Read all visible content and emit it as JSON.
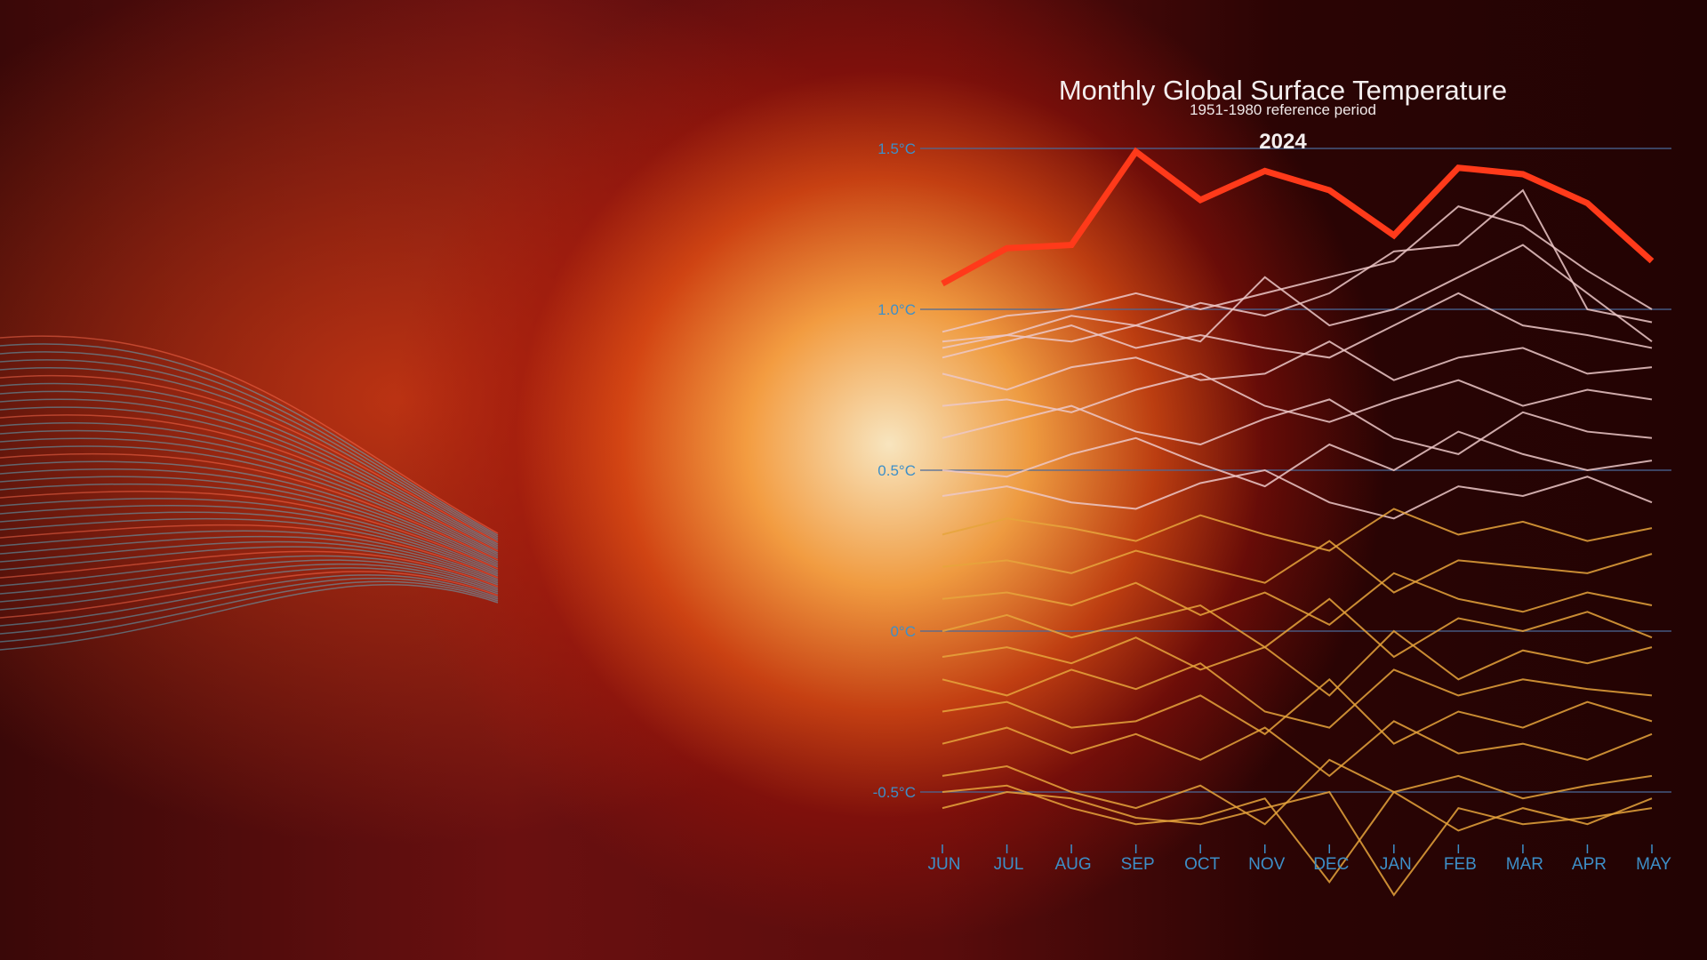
{
  "chart_data": {
    "type": "line",
    "title": "Monthly Global Surface Temperature",
    "subtitle": "1951-1980 reference period",
    "highlight_label": "2024",
    "categories": [
      "JUN",
      "JUL",
      "AUG",
      "SEP",
      "OCT",
      "NOV",
      "DEC",
      "JAN",
      "FEB",
      "MAR",
      "APR",
      "MAY"
    ],
    "yticks": [
      {
        "value": 1.5,
        "label": "1.5°C"
      },
      {
        "value": 1.0,
        "label": "1.0°C"
      },
      {
        "value": 0.5,
        "label": "0.5°C"
      },
      {
        "value": 0.0,
        "label": "0°C"
      },
      {
        "value": -0.5,
        "label": "-0.5°C"
      }
    ],
    "ylim": [
      -0.9,
      1.55
    ],
    "grid": true,
    "highlight_series": {
      "values": [
        1.08,
        1.19,
        1.2,
        1.49,
        1.34,
        1.43,
        1.37,
        1.23,
        1.44,
        1.42,
        1.33,
        1.15
      ],
      "color": "#ff3a1a"
    },
    "background_series": [
      [
        0.93,
        0.98,
        1.0,
        1.05,
        1.0,
        1.05,
        1.1,
        1.15,
        1.32,
        1.26,
        1.12,
        1.0
      ],
      [
        0.9,
        0.92,
        0.98,
        0.95,
        1.02,
        0.98,
        1.05,
        1.18,
        1.2,
        1.37,
        1.0,
        0.96
      ],
      [
        0.88,
        0.92,
        0.9,
        0.95,
        0.9,
        1.1,
        0.95,
        1.0,
        1.1,
        1.2,
        1.05,
        0.9
      ],
      [
        0.85,
        0.9,
        0.95,
        0.88,
        0.92,
        0.88,
        0.85,
        0.95,
        1.05,
        0.95,
        0.92,
        0.88
      ],
      [
        0.8,
        0.75,
        0.82,
        0.85,
        0.78,
        0.8,
        0.9,
        0.78,
        0.85,
        0.88,
        0.8,
        0.82
      ],
      [
        0.7,
        0.72,
        0.68,
        0.75,
        0.8,
        0.7,
        0.65,
        0.72,
        0.78,
        0.7,
        0.75,
        0.72
      ],
      [
        0.6,
        0.65,
        0.7,
        0.62,
        0.58,
        0.66,
        0.72,
        0.6,
        0.55,
        0.68,
        0.62,
        0.6
      ],
      [
        0.5,
        0.48,
        0.55,
        0.6,
        0.52,
        0.45,
        0.58,
        0.5,
        0.62,
        0.55,
        0.5,
        0.53
      ],
      [
        0.42,
        0.45,
        0.4,
        0.38,
        0.46,
        0.5,
        0.4,
        0.35,
        0.45,
        0.42,
        0.48,
        0.4
      ],
      [
        0.3,
        0.35,
        0.32,
        0.28,
        0.36,
        0.3,
        0.25,
        0.38,
        0.3,
        0.34,
        0.28,
        0.32
      ],
      [
        0.2,
        0.22,
        0.18,
        0.25,
        0.2,
        0.15,
        0.28,
        0.12,
        0.22,
        0.2,
        0.18,
        0.24
      ],
      [
        0.1,
        0.12,
        0.08,
        0.15,
        0.05,
        0.12,
        0.02,
        0.18,
        0.1,
        0.06,
        0.12,
        0.08
      ],
      [
        0.0,
        0.05,
        -0.02,
        0.03,
        0.08,
        -0.05,
        0.1,
        -0.08,
        0.04,
        0.0,
        0.06,
        -0.02
      ],
      [
        -0.08,
        -0.05,
        -0.1,
        -0.02,
        -0.12,
        -0.05,
        -0.2,
        0.0,
        -0.15,
        -0.06,
        -0.1,
        -0.05
      ],
      [
        -0.15,
        -0.2,
        -0.12,
        -0.18,
        -0.1,
        -0.25,
        -0.3,
        -0.12,
        -0.2,
        -0.15,
        -0.18,
        -0.2
      ],
      [
        -0.25,
        -0.22,
        -0.3,
        -0.28,
        -0.2,
        -0.32,
        -0.15,
        -0.35,
        -0.25,
        -0.3,
        -0.22,
        -0.28
      ],
      [
        -0.35,
        -0.3,
        -0.38,
        -0.32,
        -0.4,
        -0.3,
        -0.45,
        -0.28,
        -0.38,
        -0.35,
        -0.4,
        -0.32
      ],
      [
        -0.45,
        -0.42,
        -0.5,
        -0.55,
        -0.48,
        -0.6,
        -0.4,
        -0.5,
        -0.45,
        -0.52,
        -0.48,
        -0.45
      ],
      [
        -0.5,
        -0.48,
        -0.55,
        -0.6,
        -0.58,
        -0.52,
        -0.78,
        -0.5,
        -0.62,
        -0.55,
        -0.6,
        -0.52
      ],
      [
        -0.55,
        -0.5,
        -0.52,
        -0.58,
        -0.6,
        -0.55,
        -0.5,
        -0.82,
        -0.55,
        -0.6,
        -0.58,
        -0.55
      ]
    ],
    "colors": {
      "warm_lines": "#ecc8c8",
      "cool_lines": "#e6a53c",
      "axis_text": "#3d8fc8",
      "gridline": "#4a6a9a"
    }
  }
}
